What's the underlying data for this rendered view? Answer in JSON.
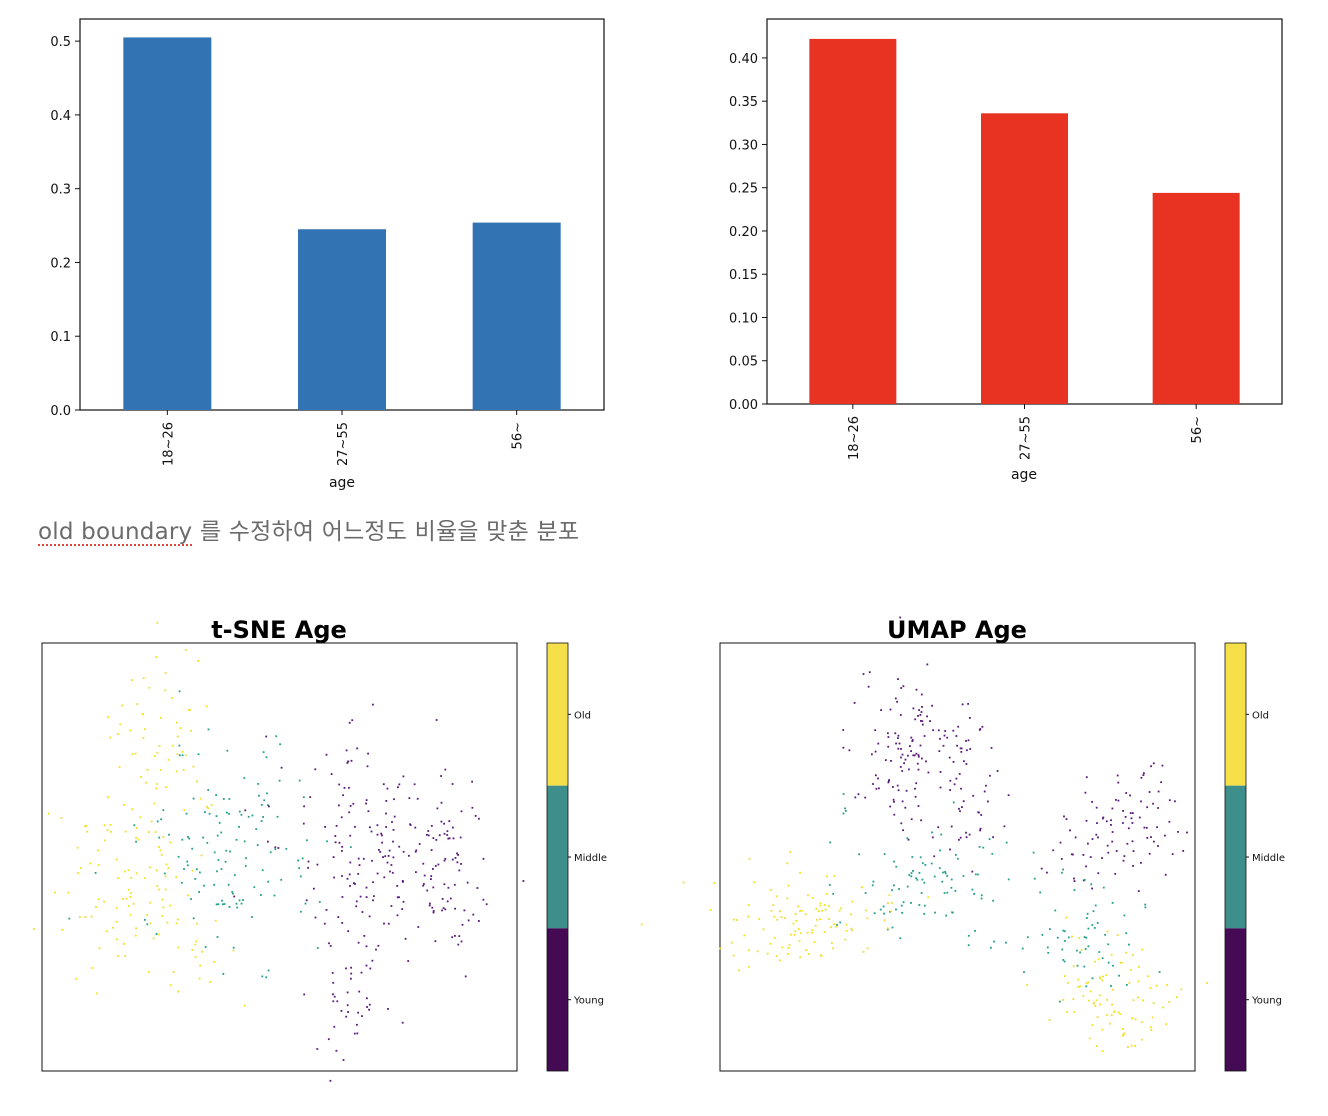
{
  "note": {
    "spell_text": "old boundary",
    "rest_text": " 를 수정하여 어느정도 비율을 맞춘 분포"
  },
  "chart_data": [
    {
      "type": "bar",
      "categories": [
        "18~26",
        "27~55",
        "56~"
      ],
      "values": [
        0.505,
        0.245,
        0.254
      ],
      "xlabel": "age",
      "ylabel": "",
      "ylim": [
        0,
        0.53
      ],
      "yticks": [
        0.0,
        0.1,
        0.2,
        0.3,
        0.4,
        0.5
      ],
      "ytick_labels": [
        "0.0",
        "0.1",
        "0.2",
        "0.3",
        "0.4",
        "0.5"
      ],
      "color": "#3274b3",
      "grid": false
    },
    {
      "type": "bar",
      "categories": [
        "18~26",
        "27~55",
        "56~"
      ],
      "values": [
        0.422,
        0.336,
        0.244
      ],
      "xlabel": "age",
      "ylabel": "",
      "ylim": [
        0,
        0.445
      ],
      "yticks": [
        0.0,
        0.05,
        0.1,
        0.15,
        0.2,
        0.25,
        0.3,
        0.35,
        0.4
      ],
      "ytick_labels": [
        "0.00",
        "0.05",
        "0.10",
        "0.15",
        "0.20",
        "0.25",
        "0.30",
        "0.35",
        "0.40"
      ],
      "color": "#e83323",
      "grid": false
    },
    {
      "type": "scatter",
      "title": "t-SNE Age",
      "axes_visible": false,
      "colorbar": {
        "labels": [
          "Old",
          "Middle",
          "Young"
        ],
        "colors": [
          "#f5e04a",
          "#3d8f8b",
          "#440b54"
        ]
      },
      "clusters": [
        {
          "label": "Old",
          "color": "#f0e020",
          "points_approx": 170
        },
        {
          "label": "Middle",
          "color": "#22a08a",
          "points_approx": 130
        },
        {
          "label": "Young",
          "color": "#5a1a7a",
          "points_approx": 260
        }
      ]
    },
    {
      "type": "scatter",
      "title": "UMAP Age",
      "axes_visible": false,
      "colorbar": {
        "labels": [
          "Old",
          "Middle",
          "Young"
        ],
        "colors": [
          "#f5e04a",
          "#3d8f8b",
          "#440b54"
        ]
      },
      "clusters": [
        {
          "label": "Old",
          "color": "#f0e020",
          "points_approx": 190
        },
        {
          "label": "Middle",
          "color": "#22a08a",
          "points_approx": 150
        },
        {
          "label": "Young",
          "color": "#5a1a7a",
          "points_approx": 260
        }
      ]
    }
  ]
}
